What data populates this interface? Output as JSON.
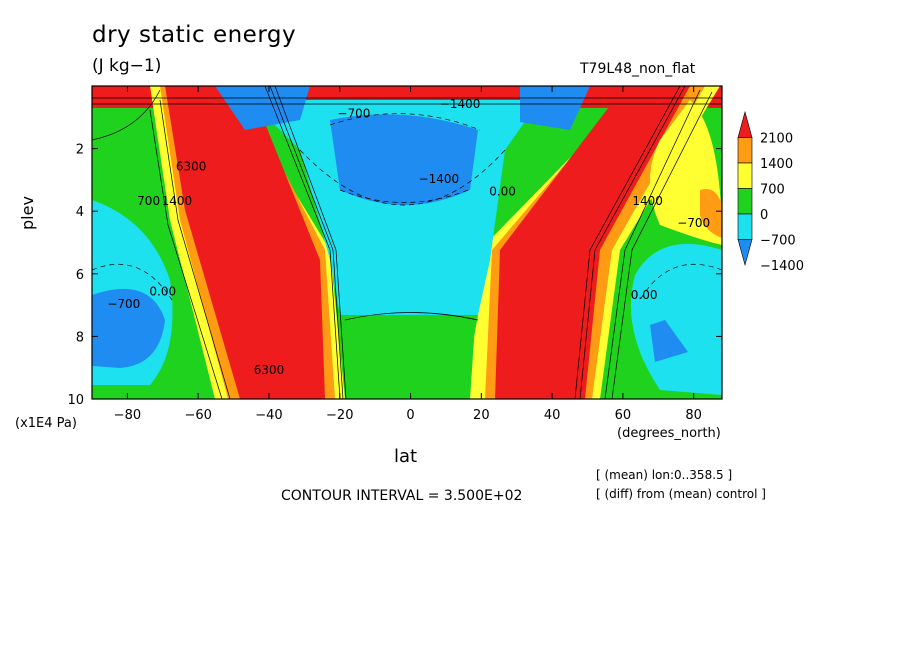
{
  "header": {
    "title": "dry static energy",
    "units": "(J kg−1)",
    "dataset": "T79L48_non_flat"
  },
  "axes": {
    "y_label": "plev",
    "y_units": "(x1E4 Pa)",
    "x_label": "lat",
    "x_units": "(degrees_north)"
  },
  "footer": {
    "contour_interval": "CONTOUR INTERVAL = 3.500E+02",
    "note_mean": "[ (mean) lon:0..358.5 ]",
    "note_diff": "[ (diff) from (mean) control ]"
  },
  "colors": {
    "red": "#ee1c1c",
    "orange": "#ff9c14",
    "yellow": "#ffff32",
    "green": "#1ed21e",
    "cyan": "#1ee1f0",
    "blue": "#1e8cf0"
  },
  "chart_data": {
    "type": "contour",
    "x_ticks": [
      -80,
      -60,
      -40,
      -20,
      0,
      20,
      40,
      60,
      80
    ],
    "y_ticks": [
      2,
      4,
      6,
      8,
      10
    ],
    "xlim": [
      -90,
      88
    ],
    "ylim": [
      10,
      0
    ],
    "colorbar": {
      "labels": [
        "2100",
        "1400",
        "700",
        "0",
        "−700",
        "−1400"
      ],
      "levels": [
        {
          "min": 2100,
          "color": "#ee1c1c"
        },
        {
          "min": 1400,
          "max": 2100,
          "color": "#ff9c14"
        },
        {
          "min": 700,
          "max": 1400,
          "color": "#ffff32"
        },
        {
          "min": 0,
          "max": 700,
          "color": "#1ed21e"
        },
        {
          "min": -700,
          "max": 0,
          "color": "#1ee1f0"
        },
        {
          "max": -1400,
          "color": "#1e8cf0"
        }
      ]
    },
    "contour_labels": [
      {
        "text": "−700",
        "lat": -16,
        "p": 1.0
      },
      {
        "text": "−1400",
        "lat": 14,
        "p": 0.7
      },
      {
        "text": "−1400",
        "lat": 8,
        "p": 3.1
      },
      {
        "text": "0.00",
        "lat": 26,
        "p": 3.5
      },
      {
        "text": "−700",
        "lat": 80,
        "p": 4.5
      },
      {
        "text": "6300",
        "lat": -62,
        "p": 2.7
      },
      {
        "text": "1400",
        "lat": -66,
        "p": 3.8
      },
      {
        "text": "700",
        "lat": -74,
        "p": 3.8
      },
      {
        "text": "−700",
        "lat": -81,
        "p": 7.1
      },
      {
        "text": "0.00",
        "lat": -70,
        "p": 6.7
      },
      {
        "text": "0.00",
        "lat": 66,
        "p": 6.8
      },
      {
        "text": "6300",
        "lat": -40,
        "p": 9.2
      },
      {
        "text": "1400",
        "lat": 67,
        "p": 3.8
      }
    ]
  }
}
